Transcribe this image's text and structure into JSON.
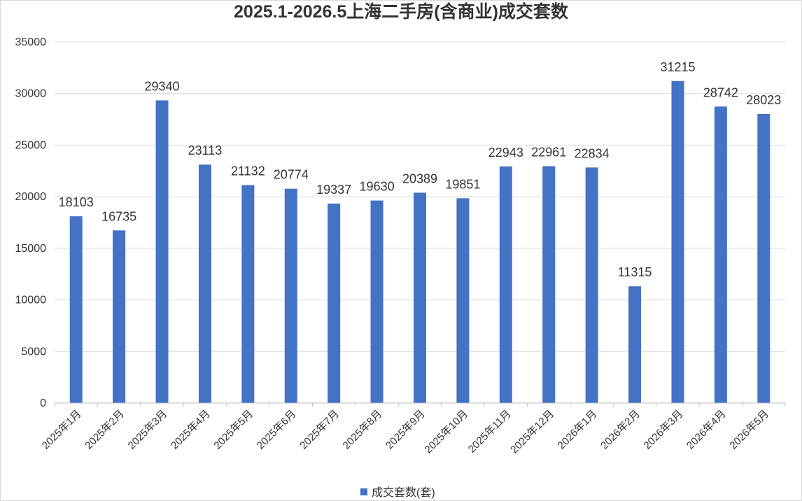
{
  "chart_data": {
    "type": "bar",
    "title": "2025.1-2026.5上海二手房(含商业)成交套数",
    "xlabel": "",
    "ylabel": "",
    "ylim": [
      0,
      35000
    ],
    "yticks": [
      0,
      5000,
      10000,
      15000,
      20000,
      25000,
      30000,
      35000
    ],
    "categories": [
      "2025年1月",
      "2025年2月",
      "2025年3月",
      "2025年4月",
      "2025年5月",
      "2025年6月",
      "2025年7月",
      "2025年8月",
      "2025年9月",
      "2025年10月",
      "2025年11月",
      "2025年12月",
      "2026年1月",
      "2026年2月",
      "2026年3月",
      "2026年4月",
      "2026年5月"
    ],
    "series": [
      {
        "name": "成交套数(套)",
        "color": "#4472c4",
        "values": [
          18103,
          16735,
          29340,
          23113,
          21132,
          20774,
          19337,
          19630,
          20389,
          19851,
          22943,
          22961,
          22834,
          11315,
          31215,
          28742,
          28023
        ]
      }
    ],
    "grid": true,
    "legend": "bottom-center",
    "data_labels": true
  }
}
